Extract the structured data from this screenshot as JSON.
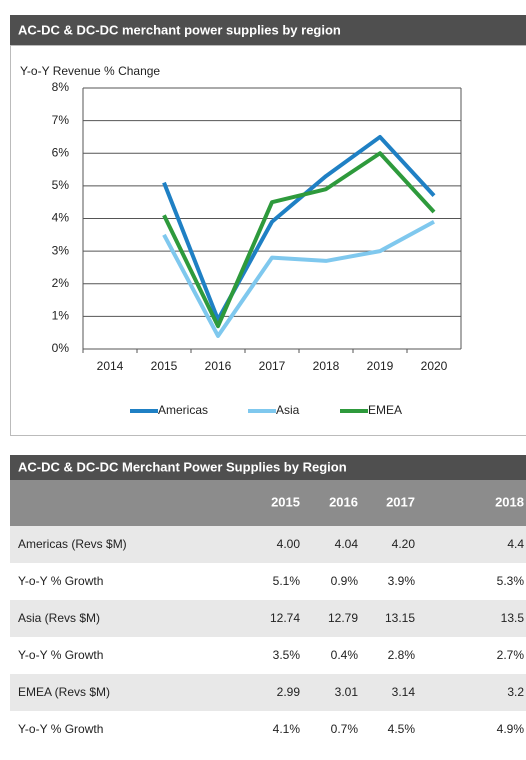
{
  "chart_data": {
    "type": "line",
    "title": "AC-DC & DC-DC merchant power supplies by region",
    "y_label": "Y-o-Y Revenue % Change",
    "categories": [
      "2014",
      "2015",
      "2016",
      "2017",
      "2018",
      "2019",
      "2020"
    ],
    "series": [
      {
        "name": "Americas",
        "color": "#1f80c4",
        "values": [
          null,
          5.1,
          0.9,
          3.9,
          5.3,
          6.5,
          4.7
        ]
      },
      {
        "name": "Asia",
        "color": "#7fc8ee",
        "values": [
          null,
          3.5,
          0.4,
          2.8,
          2.7,
          3.0,
          3.9
        ]
      },
      {
        "name": "EMEA",
        "color": "#2e9a3c",
        "values": [
          null,
          4.1,
          0.7,
          4.5,
          4.9,
          6.0,
          4.2
        ]
      }
    ],
    "ylim": [
      0,
      8
    ],
    "yticks": [
      {
        "value": 0,
        "label": "0%"
      },
      {
        "value": 1,
        "label": "1%"
      },
      {
        "value": 2,
        "label": "2%"
      },
      {
        "value": 3,
        "label": "3%"
      },
      {
        "value": 4,
        "label": "4%"
      },
      {
        "value": 5,
        "label": "5%"
      },
      {
        "value": 6,
        "label": "6%"
      },
      {
        "value": 7,
        "label": "7%"
      },
      {
        "value": 8,
        "label": "8%"
      }
    ],
    "grid": true,
    "legend": "bottom"
  },
  "table": {
    "title": "AC-DC & DC-DC Merchant Power Supplies by Region",
    "columns": [
      "2015",
      "2016",
      "2017",
      "2018"
    ],
    "rows": [
      {
        "label": "Americas (Revs $M)",
        "cells": [
          "4.00",
          "4.04",
          "4.20",
          "4.4"
        ]
      },
      {
        "label": "Y-o-Y % Growth",
        "cells": [
          "5.1%",
          "0.9%",
          "3.9%",
          "5.3%"
        ]
      },
      {
        "label": "Asia (Revs $M)",
        "cells": [
          "12.74",
          "12.79",
          "13.15",
          "13.5"
        ]
      },
      {
        "label": "Y-o-Y % Growth",
        "cells": [
          "3.5%",
          "0.4%",
          "2.8%",
          "2.7%"
        ]
      },
      {
        "label": "EMEA (Revs $M)",
        "cells": [
          "2.99",
          "3.01",
          "3.14",
          "3.2"
        ]
      },
      {
        "label": "Y-o-Y % Growth",
        "cells": [
          "4.1%",
          "0.7%",
          "4.5%",
          "4.9%"
        ]
      }
    ]
  }
}
